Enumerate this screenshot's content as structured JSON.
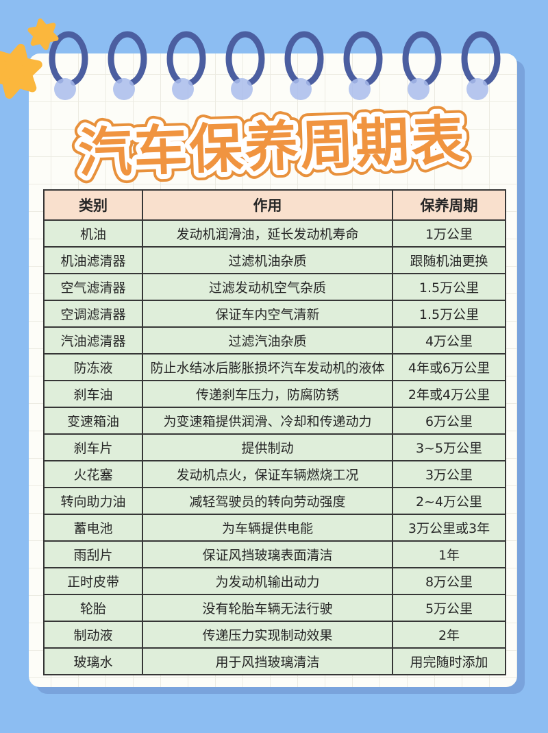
{
  "page": {
    "title": "汽车保养周期表"
  },
  "table": {
    "headers": [
      "类别",
      "作用",
      "保养周期"
    ],
    "rows": [
      [
        "机油",
        "发动机润滑油，延长发动机寿命",
        "1万公里"
      ],
      [
        "机油滤清器",
        "过滤机油杂质",
        "跟随机油更换"
      ],
      [
        "空气滤清器",
        "过滤发动机空气杂质",
        "1.5万公里"
      ],
      [
        "空调滤清器",
        "保证车内空气清新",
        "1.5万公里"
      ],
      [
        "汽油滤清器",
        "过滤汽油杂质",
        "4万公里"
      ],
      [
        "防冻液",
        "防止水结冰后膨胀损坏汽车发动机的液体",
        "4年或6万公里"
      ],
      [
        "刹车油",
        "传递刹车压力，防腐防锈",
        "2年或4万公里"
      ],
      [
        "变速箱油",
        "为变速箱提供润滑、冷却和传递动力",
        "6万公里"
      ],
      [
        "刹车片",
        "提供制动",
        "3~5万公里"
      ],
      [
        "火花塞",
        "发动机点火，保证车辆燃烧工况",
        "3万公里"
      ],
      [
        "转向助力油",
        "减轻驾驶员的转向劳动强度",
        "2~4万公里"
      ],
      [
        "蓄电池",
        "为车辆提供电能",
        "3万公里或3年"
      ],
      [
        "雨刮片",
        "保证风挡玻璃表面清洁",
        "1年"
      ],
      [
        "正时皮带",
        "为发动机输出动力",
        "8万公里"
      ],
      [
        "轮胎",
        "没有轮胎车辆无法行驶",
        "5万公里"
      ],
      [
        "制动液",
        "传递压力实现制动效果",
        "2年"
      ],
      [
        "玻璃水",
        "用于风挡玻璃清洁",
        "用完随时添加"
      ]
    ]
  },
  "decor": {
    "binding_icon": "spiral-ring-icon",
    "star_icon": "star-icon"
  },
  "colors": {
    "background_blue": "#8CBDF2",
    "paper_shadow_blue": "#79A3DC",
    "paper_white": "#FDFDF8",
    "grid_line": "#ECEBE2",
    "title_orange": "#F09440",
    "title_outline_white": "#FFFFFF",
    "star_yellow": "#FBB73D",
    "ring_dark_blue": "#4B5EA0",
    "ring_ball_blue": "#A9BCEC",
    "header_peach": "#F9E0CD",
    "row_green": "#DFEEDA",
    "table_border": "#363636",
    "text_dark": "#262626"
  }
}
